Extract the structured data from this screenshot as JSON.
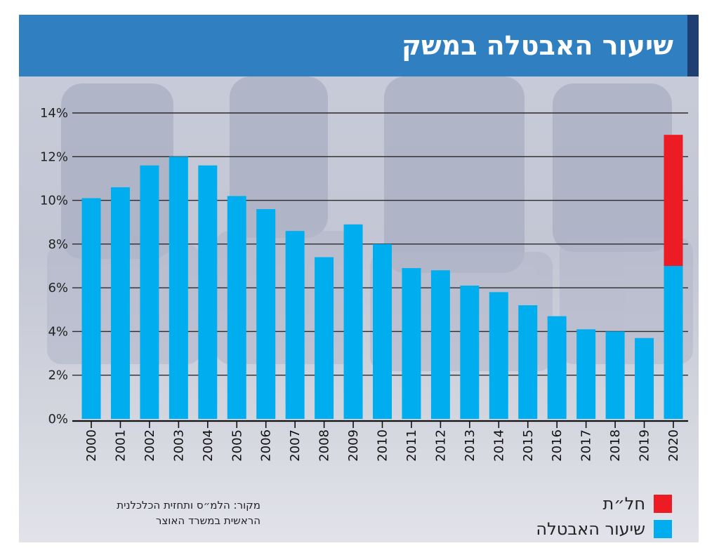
{
  "colors": {
    "unemployment": "#00aeef",
    "furlough": "#ed1c24",
    "header": "#2f7fc1",
    "header_strip": "#1f3f73"
  },
  "chart_data": {
    "type": "bar",
    "stacked": true,
    "title": "שיעור האבטלה במשק",
    "categories": [
      "2000",
      "2001",
      "2002",
      "2003",
      "2004",
      "2005",
      "2006",
      "2007",
      "2008",
      "2009",
      "2010",
      "2011",
      "2012",
      "2013",
      "2014",
      "2015",
      "2016",
      "2017",
      "2018",
      "2019",
      "2020"
    ],
    "series": [
      {
        "name": "שיעור האבטלה",
        "color": "#00aeef",
        "values": [
          10.1,
          10.6,
          11.6,
          12.0,
          11.6,
          10.2,
          9.6,
          8.6,
          7.4,
          8.9,
          8.0,
          6.9,
          6.8,
          6.1,
          5.8,
          5.2,
          4.7,
          4.1,
          4.0,
          3.7,
          7.0
        ]
      },
      {
        "name": "חל״ת",
        "color": "#ed1c24",
        "values": [
          0,
          0,
          0,
          0,
          0,
          0,
          0,
          0,
          0,
          0,
          0,
          0,
          0,
          0,
          0,
          0,
          0,
          0,
          0,
          0,
          6.0
        ]
      }
    ],
    "ylim": [
      0,
      14
    ],
    "yticks": [
      0,
      2,
      4,
      6,
      8,
      10,
      12,
      14
    ],
    "ytick_labels": [
      "0%",
      "2%",
      "4%",
      "6%",
      "8%",
      "10%",
      "12%",
      "14%"
    ],
    "grid": true,
    "xlabel": "",
    "ylabel": "",
    "legend_position": "bottom-right"
  },
  "legend": {
    "items": [
      {
        "label": "חל״ת",
        "color": "#ed1c24"
      },
      {
        "label": "שיעור האבטלה",
        "color": "#00aeef"
      }
    ]
  },
  "source": {
    "line1": "מקור: הלמ״ס ותחזית הכלכלנית",
    "line2": "הראשית במשרד האוצר"
  }
}
